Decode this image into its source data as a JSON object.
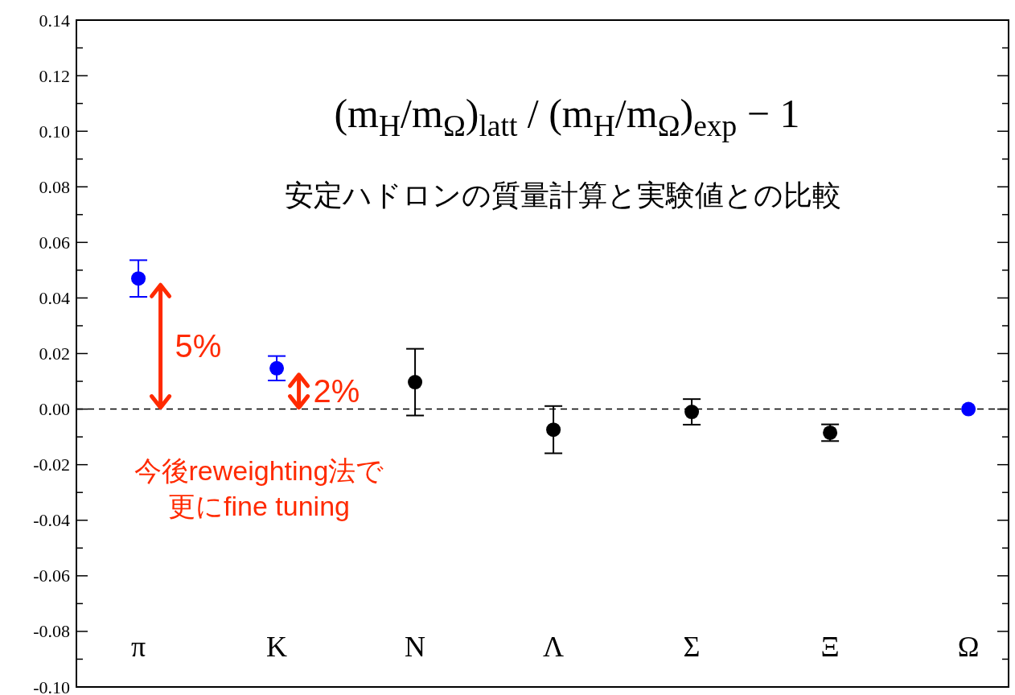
{
  "chart_data": {
    "type": "scatter",
    "title": "(m$_{H}$/m$_{Ω}$)$_{latt}$ / (m$_{H}$/m$_{Ω}$)$_{exp}$ − 1",
    "subtitle": "安定ハドロンの質量計算と実験値との比較",
    "categories": [
      "π",
      "K",
      "N",
      "Λ",
      "Σ",
      "Ξ",
      "Ω"
    ],
    "values": [
      0.047,
      0.0147,
      0.0097,
      -0.0074,
      -0.001,
      -0.0085,
      0
    ],
    "errors": [
      0.0066,
      0.0044,
      0.012,
      0.0085,
      0.0046,
      0.003,
      null
    ],
    "colors": [
      "#0000ff",
      "#0000ff",
      "#000000",
      "#000000",
      "#000000",
      "#000000",
      "#0000ff"
    ],
    "marker": "circle",
    "ylim": [
      -0.1,
      0.14
    ],
    "yticks": [
      {
        "value": -0.1,
        "label": "-0.10"
      },
      {
        "value": -0.09,
        "label": null
      },
      {
        "value": -0.08,
        "label": "-0.08"
      },
      {
        "value": -0.07,
        "label": null
      },
      {
        "value": -0.06,
        "label": "-0.06"
      },
      {
        "value": -0.05,
        "label": null
      },
      {
        "value": -0.04,
        "label": "-0.04"
      },
      {
        "value": -0.03,
        "label": null
      },
      {
        "value": -0.02,
        "label": "-0.02"
      },
      {
        "value": -0.01,
        "label": null
      },
      {
        "value": 0,
        "label": "0.00"
      },
      {
        "value": 0.01,
        "label": null
      },
      {
        "value": 0.02,
        "label": "0.02"
      },
      {
        "value": 0.03,
        "label": null
      },
      {
        "value": 0.04,
        "label": "0.04"
      },
      {
        "value": 0.05,
        "label": null
      },
      {
        "value": 0.06,
        "label": "0.06"
      },
      {
        "value": 0.07,
        "label": null
      },
      {
        "value": 0.08,
        "label": "0.08"
      },
      {
        "value": 0.09,
        "label": null
      },
      {
        "value": 0.1,
        "label": "0.10"
      },
      {
        "value": 0.11,
        "label": null
      },
      {
        "value": 0.12,
        "label": "0.12"
      },
      {
        "value": 0.13,
        "label": null
      },
      {
        "value": 0.14,
        "label": "0.14"
      }
    ],
    "ref_lines": [
      {
        "axis": "y",
        "value": 0,
        "color": "#000000",
        "line_style": "dashed"
      }
    ],
    "annotations": [
      {
        "text": "5%",
        "x": "π",
        "y": 0.047
      },
      {
        "text": "2%",
        "x": "K",
        "y": 0.0147
      },
      "今後reweighting法で",
      "更にfine tuning"
    ],
    "grid": false
  }
}
